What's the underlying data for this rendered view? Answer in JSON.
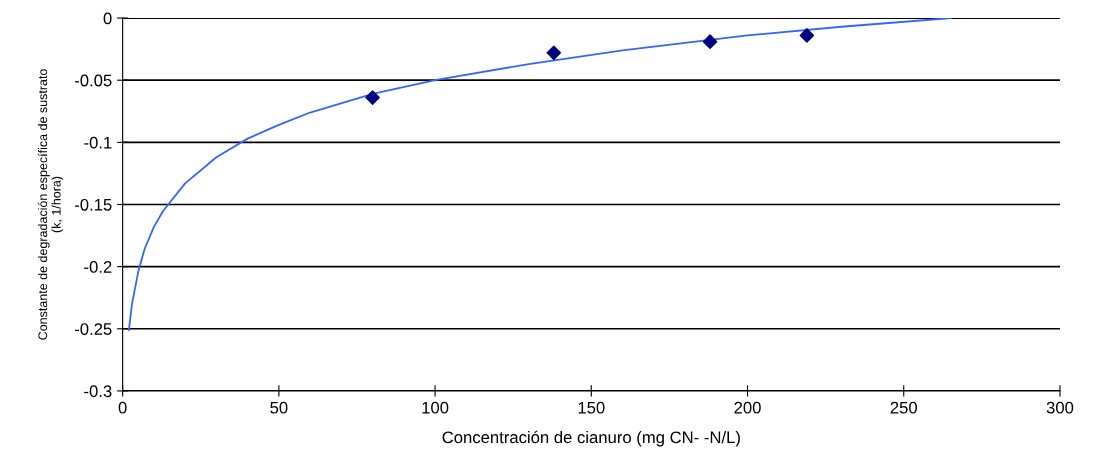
{
  "chart_data": {
    "type": "scatter",
    "xlabel": "Concentración de cianuro (mg CN- -N/L)",
    "ylabel": "Constante de degradación específica de sustrato\n(k, 1/hora)",
    "xlim": [
      0,
      300
    ],
    "xticks": [
      0,
      50,
      100,
      150,
      200,
      250,
      300
    ],
    "ylim": [
      -0.3,
      0
    ],
    "yticks": [
      -0.3,
      -0.25,
      -0.2,
      -0.15,
      -0.1,
      -0.05,
      0
    ],
    "grid": "y",
    "legend": false,
    "series": [
      {
        "color": "#000080",
        "marker": "diamond",
        "x": [
          80,
          138,
          188,
          219
        ],
        "values": [
          -0.064,
          -0.028,
          -0.019,
          -0.014
        ]
      },
      {
        "type": "line",
        "color": "#3366ff",
        "marker": "none",
        "line_style": "solid",
        "x": [
          2,
          3,
          5,
          7,
          10,
          13,
          20,
          30,
          40,
          50,
          60,
          80,
          100,
          130,
          160,
          200,
          230,
          265
        ],
        "values": [
          -0.251,
          -0.23,
          -0.204,
          -0.186,
          -0.168,
          -0.155,
          -0.133,
          -0.112,
          -0.097,
          -0.086,
          -0.076,
          -0.061,
          -0.05,
          -0.037,
          -0.026,
          -0.014,
          -0.007,
          0
        ]
      }
    ]
  }
}
